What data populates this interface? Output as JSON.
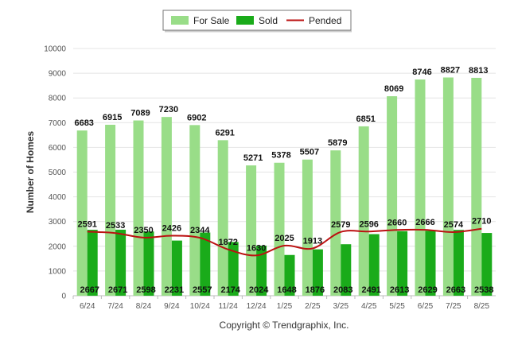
{
  "chart_data": {
    "type": "bar",
    "categories": [
      "6/24",
      "7/24",
      "8/24",
      "9/24",
      "10/24",
      "11/24",
      "12/24",
      "1/25",
      "2/25",
      "3/25",
      "4/25",
      "5/25",
      "6/25",
      "7/25",
      "8/25"
    ],
    "series": [
      {
        "name": "For Sale",
        "type": "bar",
        "color": "#99dd88",
        "values": [
          6683,
          6915,
          7089,
          7230,
          6902,
          6291,
          5271,
          5378,
          5507,
          5879,
          6851,
          8069,
          8746,
          8827,
          8813
        ]
      },
      {
        "name": "Sold",
        "type": "bar",
        "color": "#1aab1a",
        "values": [
          2667,
          2671,
          2598,
          2231,
          2557,
          2174,
          2024,
          1648,
          1876,
          2083,
          2491,
          2613,
          2629,
          2663,
          2538
        ]
      },
      {
        "name": "Pended",
        "type": "line",
        "color": "#bb1111",
        "values": [
          2591,
          2533,
          2350,
          2426,
          2344,
          1872,
          1630,
          2025,
          1913,
          2579,
          2596,
          2660,
          2666,
          2574,
          2710
        ]
      }
    ],
    "ylabel": "Number of Homes",
    "xlabel": "",
    "ylim": [
      0,
      10000
    ],
    "yticks": [
      0,
      1000,
      2000,
      3000,
      4000,
      5000,
      6000,
      7000,
      8000,
      9000,
      10000
    ],
    "grid": true,
    "legend": "top-center",
    "credit": "Copyright © Trendgraphix, Inc."
  }
}
